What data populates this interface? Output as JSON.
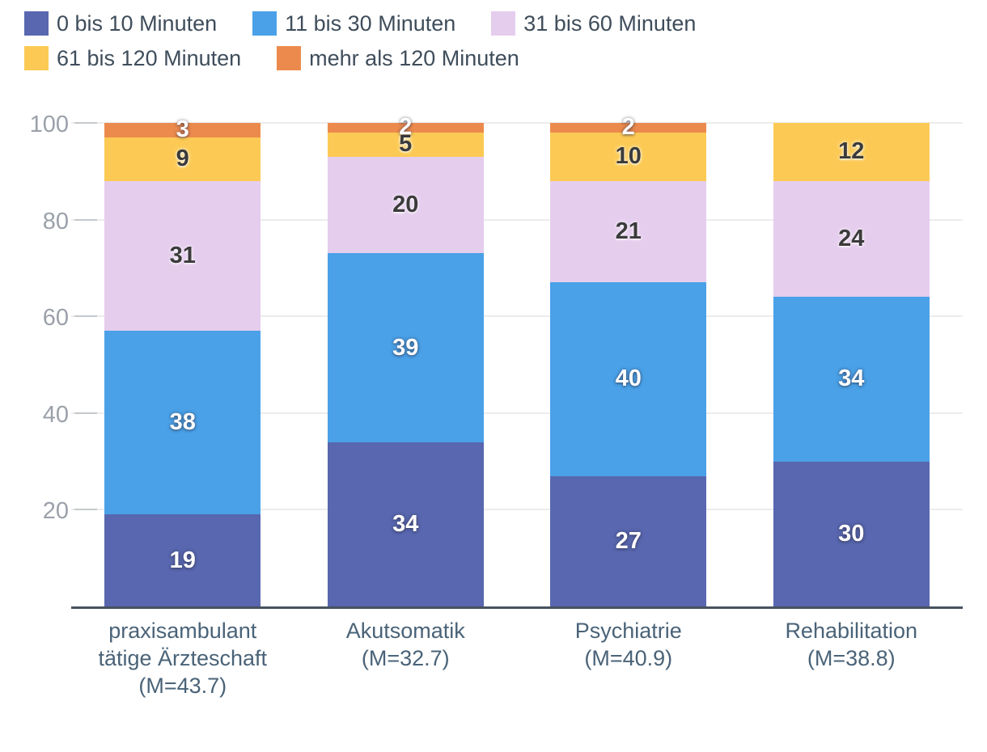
{
  "legend": {
    "items": [
      {
        "label": "0 bis 10 Minuten",
        "color": "#5867af"
      },
      {
        "label": "11 bis 30 Minuten",
        "color": "#4aa1e7"
      },
      {
        "label": "31 bis 60 Minuten",
        "color": "#e5cdee"
      },
      {
        "label": "61 bis 120 Minuten",
        "color": "#fcca54"
      },
      {
        "label": "mehr als 120 Minuten",
        "color": "#ec8a4d"
      }
    ]
  },
  "chart_data": {
    "type": "bar",
    "stacked": true,
    "unit": "percent",
    "title": "",
    "xlabel": "",
    "ylabel": "",
    "grid": true,
    "legend_position": "top",
    "y_axis": {
      "min": 0,
      "max": 100,
      "ticks": [
        20,
        40,
        60,
        80,
        100
      ]
    },
    "categories": [
      "praxisambulant tätige Ärzteschaft (M=43.7)",
      "Akutsomatik (M=32.7)",
      "Psychiatrie (M=40.9)",
      "Rehabilitation (M=38.8)"
    ],
    "category_label_lines": [
      [
        "praxisambulant",
        "tätige Ärzteschaft",
        "(M=43.7)"
      ],
      [
        "Akutsomatik",
        "(M=32.7)"
      ],
      [
        "Psychiatrie",
        "(M=40.9)"
      ],
      [
        "Rehabilitation",
        "(M=38.8)"
      ]
    ],
    "mean_values": [
      43.7,
      32.7,
      40.9,
      38.8
    ],
    "series": [
      {
        "name": "0 bis 10 Minuten",
        "color": "#5867af",
        "label_style": "light",
        "values": [
          19,
          34,
          27,
          30
        ]
      },
      {
        "name": "11 bis 30 Minuten",
        "color": "#4aa1e7",
        "label_style": "light",
        "values": [
          38,
          39,
          40,
          34
        ]
      },
      {
        "name": "31 bis 60 Minuten",
        "color": "#e5cdee",
        "label_style": "dark",
        "values": [
          31,
          20,
          21,
          24
        ]
      },
      {
        "name": "61 bis 120 Minuten",
        "color": "#fcca54",
        "label_style": "dark",
        "values": [
          9,
          5,
          10,
          12
        ]
      },
      {
        "name": "mehr als 120 Minuten",
        "color": "#ec8a4d",
        "label_style": "light",
        "values": [
          3,
          2,
          2,
          0
        ]
      }
    ]
  },
  "colors": {
    "axis_line": "#47525f",
    "gridline": "#ececec",
    "y_tick": "#c5c9cc",
    "y_label_text": "#9ba1a9",
    "x_label_text": "#4a6378",
    "legend_text": "#3f4d5b",
    "value_label_light": "#ffffff",
    "value_label_dark": "#3b3b3b",
    "background": "#ffffff"
  }
}
